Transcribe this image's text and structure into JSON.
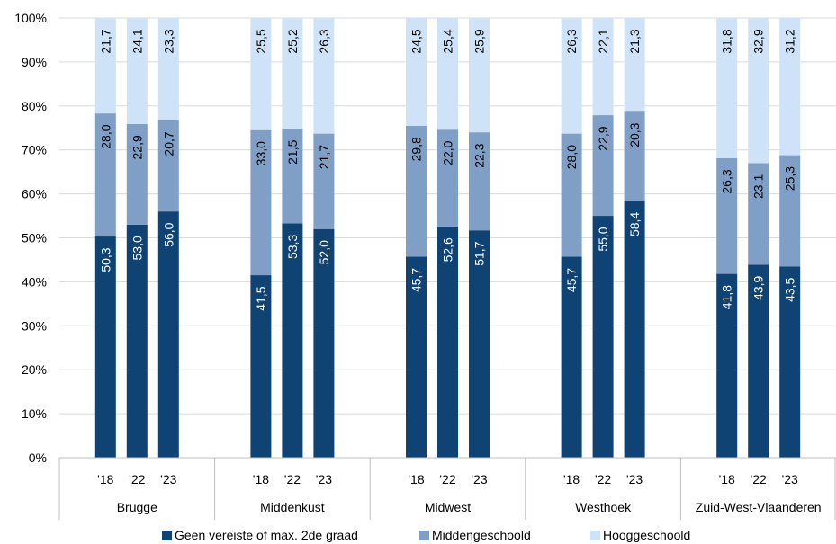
{
  "chart_data": {
    "type": "bar",
    "stacked": true,
    "orientation": "vertical",
    "groups": [
      "Brugge",
      "Middenkust",
      "Midwest",
      "Westhoek",
      "Zuid-West-Vlaanderen"
    ],
    "years": [
      "'18",
      "'22",
      "'23"
    ],
    "series": [
      {
        "name": "Geen vereiste of max. 2de graad",
        "color": "#0e4373",
        "label_color": "#ffffff",
        "values": [
          [
            50.3,
            53.0,
            56.0
          ],
          [
            41.5,
            53.3,
            52.0
          ],
          [
            45.7,
            52.6,
            51.7
          ],
          [
            45.7,
            55.0,
            58.4
          ],
          [
            41.8,
            43.9,
            43.5
          ]
        ],
        "labels": [
          [
            "50,3",
            "53,0",
            "56,0"
          ],
          [
            "41,5",
            "53,3",
            "52,0"
          ],
          [
            "45,7",
            "52,6",
            "51,7"
          ],
          [
            "45,7",
            "55,0",
            "58,4"
          ],
          [
            "41,8",
            "43,9",
            "43,5"
          ]
        ]
      },
      {
        "name": "Middengeschoold",
        "color": "#809fc6",
        "label_color": "#000000",
        "values": [
          [
            28.0,
            22.9,
            20.7
          ],
          [
            33.0,
            21.5,
            21.7
          ],
          [
            29.8,
            22.0,
            22.3
          ],
          [
            28.0,
            22.9,
            20.3
          ],
          [
            26.3,
            23.1,
            25.3
          ]
        ],
        "labels": [
          [
            "28,0",
            "22,9",
            "20,7"
          ],
          [
            "33,0",
            "21,5",
            "21,7"
          ],
          [
            "29,8",
            "22,0",
            "22,3"
          ],
          [
            "28,0",
            "22,9",
            "20,3"
          ],
          [
            "26,3",
            "23,1",
            "25,3"
          ]
        ]
      },
      {
        "name": "Hooggeschoold",
        "color": "#cfe3f8",
        "label_color": "#000000",
        "values": [
          [
            21.7,
            24.1,
            23.3
          ],
          [
            25.5,
            25.2,
            26.3
          ],
          [
            24.5,
            25.4,
            25.9
          ],
          [
            26.3,
            22.1,
            21.3
          ],
          [
            31.8,
            32.9,
            31.2
          ]
        ],
        "labels": [
          [
            "21,7",
            "24,1",
            "23,3"
          ],
          [
            "25,5",
            "25,2",
            "26,3"
          ],
          [
            "24,5",
            "25,4",
            "25,9"
          ],
          [
            "26,3",
            "22,1",
            "21,3"
          ],
          [
            "31,8",
            "32,9",
            "31,2"
          ]
        ]
      }
    ],
    "y_ticks": [
      "0%",
      "10%",
      "20%",
      "30%",
      "40%",
      "50%",
      "60%",
      "70%",
      "80%",
      "90%",
      "100%"
    ],
    "ylim": [
      0,
      100
    ],
    "grid": true,
    "legend_position": "bottom",
    "title": "",
    "xlabel": "",
    "ylabel": ""
  }
}
